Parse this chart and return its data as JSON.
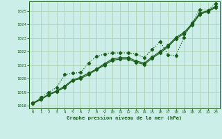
{
  "title": "Graphe pression niveau de la mer (hPa)",
  "bg_color": "#cceee8",
  "grid_color": "#aaccaa",
  "line_color": "#1a5c1a",
  "text_color": "#1a5c1a",
  "xlim": [
    -0.5,
    23.5
  ],
  "ylim": [
    1017.8,
    1025.7
  ],
  "xticks": [
    0,
    1,
    2,
    3,
    4,
    5,
    6,
    7,
    8,
    9,
    10,
    11,
    12,
    13,
    14,
    15,
    16,
    17,
    18,
    19,
    20,
    21,
    22,
    23
  ],
  "yticks": [
    1018,
    1019,
    1020,
    1021,
    1022,
    1023,
    1024,
    1025
  ],
  "series_solid1": [
    1018.2,
    1018.5,
    1018.85,
    1019.1,
    1019.45,
    1019.9,
    1020.1,
    1020.4,
    1020.7,
    1021.1,
    1021.45,
    1021.55,
    1021.55,
    1021.3,
    1021.15,
    1021.6,
    1022.0,
    1022.45,
    1023.05,
    1023.4,
    1024.05,
    1024.85,
    1025.0,
    1025.35
  ],
  "series_solid2": [
    1018.15,
    1018.45,
    1018.8,
    1019.05,
    1019.35,
    1019.85,
    1020.0,
    1020.3,
    1020.65,
    1021.0,
    1021.35,
    1021.45,
    1021.45,
    1021.2,
    1021.05,
    1021.5,
    1021.9,
    1022.35,
    1022.95,
    1023.3,
    1023.95,
    1024.75,
    1024.95,
    1025.25
  ],
  "series_dotted": [
    1018.2,
    1018.6,
    1019.0,
    1019.35,
    1020.3,
    1020.4,
    1020.45,
    1021.15,
    1021.65,
    1021.8,
    1021.9,
    1021.9,
    1021.9,
    1021.8,
    1021.55,
    1022.15,
    1022.75,
    1021.75,
    1021.7,
    1023.05,
    1024.1,
    1025.1,
    1025.05,
    1025.55
  ]
}
